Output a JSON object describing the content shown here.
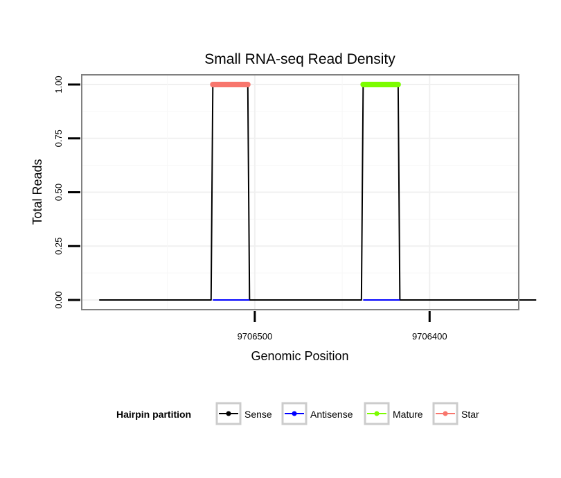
{
  "chart_data": {
    "type": "line",
    "title": "Small RNA-seq Read Density",
    "xlabel": "Genomic Position",
    "ylabel": "Total Reads",
    "x_reversed": true,
    "xlim": [
      9706599,
      9706349
    ],
    "ylim": [
      -0.045,
      1.045
    ],
    "x_ticks": [
      9706500,
      9706400
    ],
    "x_tick_labels": [
      "9706500",
      "9706400"
    ],
    "y_ticks": [
      0,
      0.25,
      0.5,
      0.75,
      1.0
    ],
    "y_tick_labels": [
      "0.00",
      "0.25",
      "0.50",
      "0.75",
      "1.00"
    ],
    "grid": true,
    "legend_position": "bottom",
    "legend_title": "Hairpin partition",
    "series": [
      {
        "name": "Sense",
        "color": "#000000",
        "x": [
          9706589,
          9706525,
          9706524,
          9706504,
          9706503,
          9706439,
          9706438,
          9706418,
          9706417,
          9706339
        ],
        "y": [
          0,
          0,
          1,
          1,
          0,
          0,
          1,
          1,
          0,
          0
        ]
      },
      {
        "name": "Antisense",
        "color": "#0000ff",
        "x": [
          9706524,
          9706503,
          9706438,
          9706417
        ],
        "y": [
          0,
          0,
          0,
          0
        ],
        "segments": [
          [
            0,
            1
          ],
          [
            2,
            3
          ]
        ]
      },
      {
        "name": "Mature",
        "color": "#7cfc00",
        "x": [
          9706438,
          9706418
        ],
        "y": [
          1,
          1
        ]
      },
      {
        "name": "Star",
        "color": "#f8766d",
        "x": [
          9706524,
          9706504
        ],
        "y": [
          1,
          1
        ]
      }
    ]
  }
}
